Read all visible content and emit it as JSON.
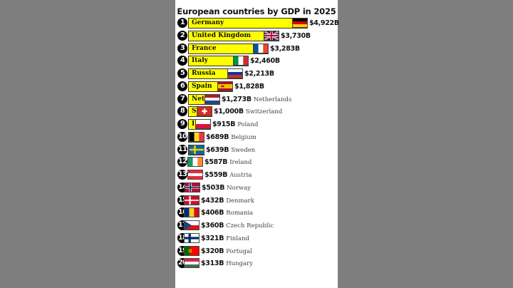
{
  "chart_data": {
    "type": "bar",
    "orientation": "horizontal",
    "title": "European countries by GDP in 2025",
    "xlabel": "",
    "ylabel": "",
    "unit": "USD billions",
    "categories": [
      "Germany",
      "United Kingdom",
      "France",
      "Italy",
      "Russia",
      "Spain",
      "Netherlands",
      "Switzerland",
      "Poland",
      "Belgium",
      "Sweden",
      "Ireland",
      "Austria",
      "Norway",
      "Denmark",
      "Romania",
      "Czech Republic",
      "Finland",
      "Portugal",
      "Hungary"
    ],
    "values": [
      4922,
      3730,
      3283,
      2460,
      2213,
      1828,
      1273,
      1000,
      915,
      689,
      639,
      587,
      559,
      503,
      432,
      406,
      360,
      321,
      320,
      313
    ],
    "value_labels": [
      "$4,922B",
      "$3,730B",
      "$3,283B",
      "$2,460B",
      "$2,213B",
      "$1,828B",
      "$1,273B",
      "$1,000B",
      "$915B",
      "$689B",
      "$639B",
      "$587B",
      "$559B",
      "$503B",
      "$432B",
      "$406B",
      "$360B",
      "$321B",
      "$320B",
      "$313B"
    ],
    "ranks": [
      1,
      2,
      3,
      4,
      5,
      6,
      7,
      8,
      9,
      10,
      11,
      12,
      13,
      14,
      15,
      16,
      17,
      18,
      19,
      20
    ],
    "bar_color": "#ffff00",
    "grid": false,
    "legend": "none"
  },
  "title": "European countries by GDP in 2025",
  "rows": [
    {
      "rank": "1",
      "label": "Germany",
      "value": "$4,922B",
      "name": "",
      "flag": "germany",
      "bar": 168
    },
    {
      "rank": "2",
      "label": "United Kingdom",
      "value": "$3,730B",
      "name": "",
      "flag": "uk",
      "bar": 128
    },
    {
      "rank": "3",
      "label": "France",
      "value": "$3,283B",
      "name": "",
      "flag": "france",
      "bar": 113
    },
    {
      "rank": "4",
      "label": "Italy",
      "value": "$2,460B",
      "name": "",
      "flag": "italy",
      "bar": 85
    },
    {
      "rank": "5",
      "label": "Russia",
      "value": "$2,213B",
      "name": "",
      "flag": "russia",
      "bar": 77
    },
    {
      "rank": "6",
      "label": "Spain",
      "value": "$1,828B",
      "name": "",
      "flag": "spain",
      "bar": 63
    },
    {
      "rank": "7",
      "label": "Net",
      "value": "$1,273B",
      "name": "Netherlands",
      "flag": "netherlands",
      "bar": 45
    },
    {
      "rank": "8",
      "label": "S",
      "value": "$1,000B",
      "name": "Switzerland",
      "flag": "switzerland",
      "bar": 34
    },
    {
      "rank": "9",
      "label": "I",
      "value": "$915B",
      "name": "Poland",
      "flag": "poland",
      "bar": 32
    },
    {
      "rank": "10",
      "label": "",
      "value": "$689B",
      "name": "Belgium",
      "flag": "belgium",
      "bar": 23
    },
    {
      "rank": "11",
      "label": "",
      "value": "$639B",
      "name": "Sweden",
      "flag": "sweden",
      "bar": 23
    },
    {
      "rank": "12",
      "label": "",
      "value": "$587B",
      "name": "Ireland",
      "flag": "ireland",
      "bar": 21
    },
    {
      "rank": "13",
      "label": "",
      "value": "$559B",
      "name": "Austria",
      "flag": "austria",
      "bar": 21
    },
    {
      "rank": "14",
      "label": "",
      "value": "$503B",
      "name": "Norway",
      "flag": "norway",
      "bar": 17
    },
    {
      "rank": "15",
      "label": "",
      "value": "$432B",
      "name": "Denmark",
      "flag": "denmark",
      "bar": 16
    },
    {
      "rank": "16",
      "label": "",
      "value": "$406B",
      "name": "Romania",
      "flag": "romania",
      "bar": 16
    },
    {
      "rank": "17",
      "label": "",
      "value": "$360B",
      "name": "Czech Republic",
      "flag": "czech",
      "bar": 16
    },
    {
      "rank": "18",
      "label": "",
      "value": "$321B",
      "name": "Finland",
      "flag": "finland",
      "bar": 16
    },
    {
      "rank": "19",
      "label": "",
      "value": "$320B",
      "name": "Portugal",
      "flag": "portugal",
      "bar": 16
    },
    {
      "rank": "20",
      "label": "",
      "value": "$313B",
      "name": "Hungary",
      "flag": "hungary",
      "bar": 16
    }
  ],
  "colors": {
    "background": "#7f7f7f",
    "panel": "#ffffff",
    "bar": "#ffff00",
    "rank_circle": "#000000"
  }
}
